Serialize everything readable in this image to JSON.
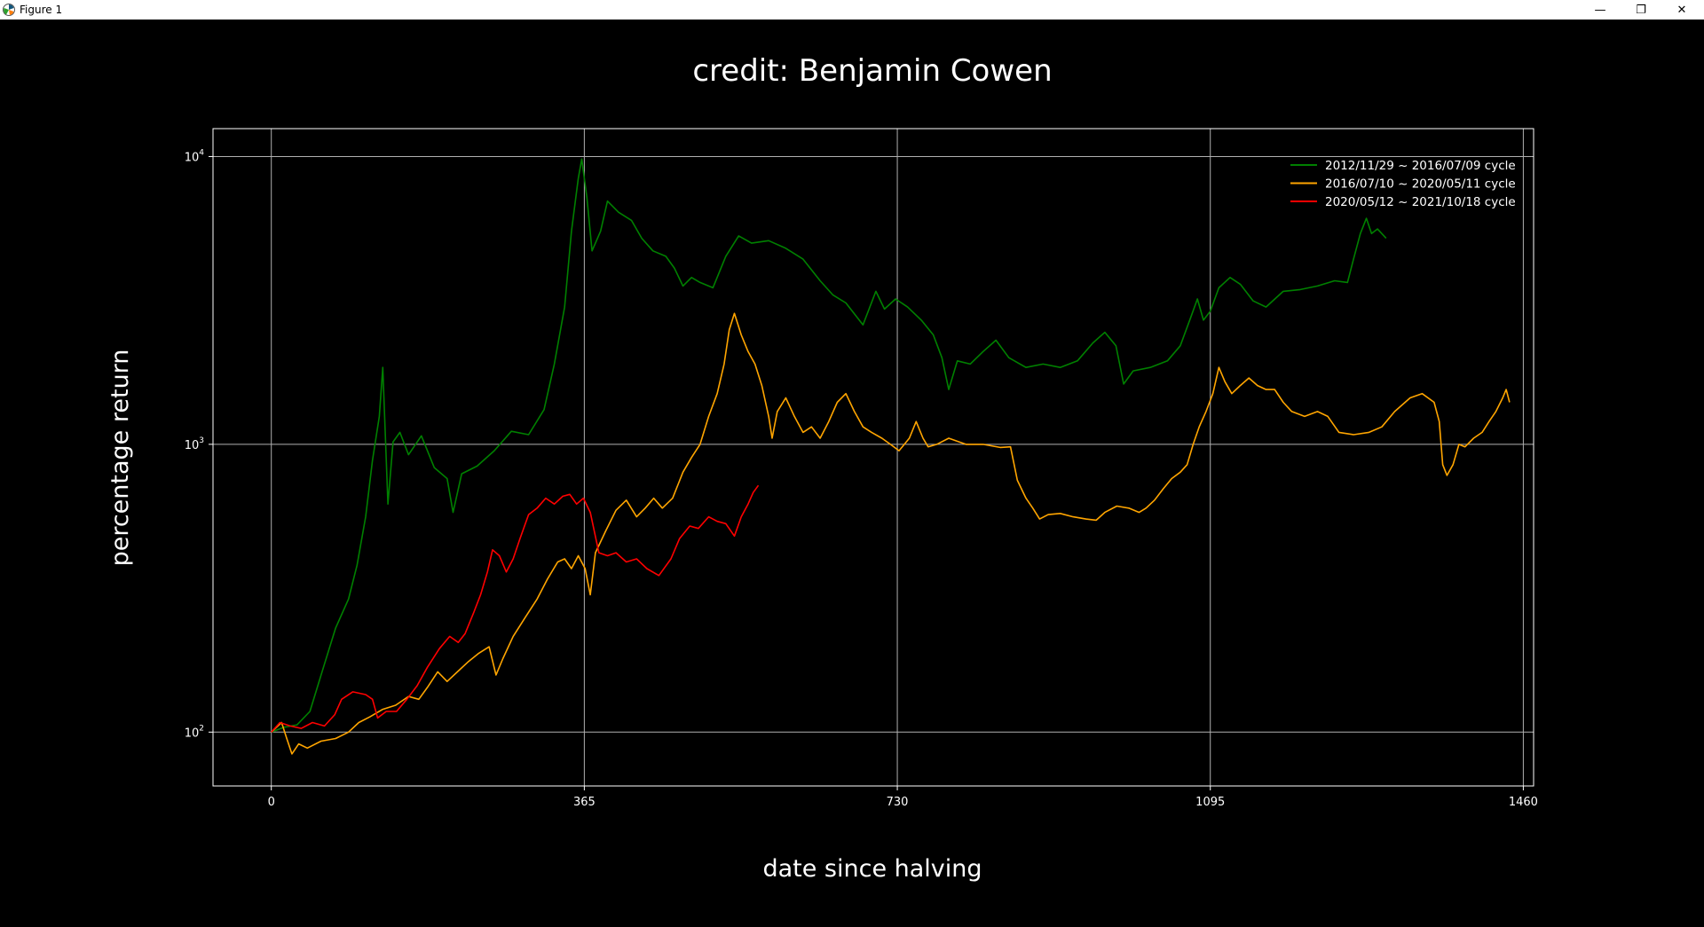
{
  "window": {
    "title": "Figure 1",
    "minimize_glyph": "—",
    "maximize_glyph": "❐",
    "close_glyph": "✕"
  },
  "chart_data": {
    "type": "line",
    "title": "credit: Benjamin Cowen",
    "xlabel": "date since halving",
    "ylabel": "percentage return",
    "xlim": [
      -68,
      1472
    ],
    "ylim": [
      65,
      12500
    ],
    "yscale": "log",
    "xticks": [
      0,
      365,
      730,
      1095,
      1460
    ],
    "yticks": [
      {
        "value": 100,
        "base": "10",
        "exp": "2"
      },
      {
        "value": 1000,
        "base": "10",
        "exp": "3"
      },
      {
        "value": 10000,
        "base": "10",
        "exp": "4"
      }
    ],
    "grid": true,
    "background": "#000000",
    "legend_position": "upper right",
    "series": [
      {
        "name": "2012/11/29 ~ 2016/07/09 cycle",
        "color": "#008000",
        "points": [
          [
            0,
            100
          ],
          [
            15,
            104
          ],
          [
            30,
            106
          ],
          [
            45,
            118
          ],
          [
            60,
            165
          ],
          [
            75,
            230
          ],
          [
            90,
            290
          ],
          [
            100,
            380
          ],
          [
            110,
            560
          ],
          [
            118,
            880
          ],
          [
            126,
            1250
          ],
          [
            130,
            1850
          ],
          [
            136,
            620
          ],
          [
            142,
            1020
          ],
          [
            150,
            1100
          ],
          [
            160,
            920
          ],
          [
            175,
            1070
          ],
          [
            190,
            830
          ],
          [
            205,
            760
          ],
          [
            212,
            580
          ],
          [
            222,
            790
          ],
          [
            240,
            840
          ],
          [
            260,
            950
          ],
          [
            280,
            1110
          ],
          [
            300,
            1080
          ],
          [
            318,
            1320
          ],
          [
            330,
            1900
          ],
          [
            342,
            3000
          ],
          [
            350,
            5500
          ],
          [
            358,
            8400
          ],
          [
            362,
            9800
          ],
          [
            368,
            7200
          ],
          [
            374,
            4700
          ],
          [
            384,
            5500
          ],
          [
            392,
            7000
          ],
          [
            405,
            6400
          ],
          [
            420,
            6000
          ],
          [
            432,
            5200
          ],
          [
            445,
            4700
          ],
          [
            460,
            4500
          ],
          [
            470,
            4100
          ],
          [
            480,
            3550
          ],
          [
            490,
            3800
          ],
          [
            500,
            3650
          ],
          [
            515,
            3500
          ],
          [
            530,
            4500
          ],
          [
            545,
            5300
          ],
          [
            560,
            5000
          ],
          [
            580,
            5100
          ],
          [
            600,
            4800
          ],
          [
            620,
            4400
          ],
          [
            640,
            3700
          ],
          [
            655,
            3300
          ],
          [
            670,
            3100
          ],
          [
            690,
            2600
          ],
          [
            705,
            3400
          ],
          [
            715,
            2950
          ],
          [
            728,
            3200
          ],
          [
            742,
            3000
          ],
          [
            758,
            2700
          ],
          [
            772,
            2400
          ],
          [
            782,
            2000
          ],
          [
            790,
            1550
          ],
          [
            800,
            1950
          ],
          [
            815,
            1900
          ],
          [
            830,
            2100
          ],
          [
            845,
            2300
          ],
          [
            860,
            2000
          ],
          [
            880,
            1850
          ],
          [
            900,
            1900
          ],
          [
            920,
            1850
          ],
          [
            940,
            1950
          ],
          [
            958,
            2250
          ],
          [
            972,
            2450
          ],
          [
            985,
            2200
          ],
          [
            994,
            1620
          ],
          [
            1005,
            1800
          ],
          [
            1025,
            1850
          ],
          [
            1045,
            1950
          ],
          [
            1060,
            2200
          ],
          [
            1072,
            2750
          ],
          [
            1080,
            3200
          ],
          [
            1087,
            2700
          ],
          [
            1095,
            2900
          ],
          [
            1105,
            3500
          ],
          [
            1118,
            3800
          ],
          [
            1130,
            3600
          ],
          [
            1145,
            3150
          ],
          [
            1160,
            3000
          ],
          [
            1180,
            3400
          ],
          [
            1200,
            3450
          ],
          [
            1220,
            3550
          ],
          [
            1240,
            3700
          ],
          [
            1255,
            3650
          ],
          [
            1262,
            4400
          ],
          [
            1270,
            5400
          ],
          [
            1277,
            6100
          ],
          [
            1283,
            5400
          ],
          [
            1290,
            5600
          ],
          [
            1300,
            5200
          ]
        ]
      },
      {
        "name": "2016/07/10 ~ 2020/05/11 cycle",
        "color": "#ffa500",
        "points": [
          [
            0,
            100
          ],
          [
            12,
            108
          ],
          [
            18,
            95
          ],
          [
            24,
            84
          ],
          [
            32,
            91
          ],
          [
            42,
            88
          ],
          [
            58,
            93
          ],
          [
            75,
            95
          ],
          [
            90,
            100
          ],
          [
            102,
            108
          ],
          [
            115,
            113
          ],
          [
            130,
            120
          ],
          [
            145,
            124
          ],
          [
            160,
            133
          ],
          [
            172,
            130
          ],
          [
            182,
            143
          ],
          [
            194,
            162
          ],
          [
            205,
            150
          ],
          [
            218,
            163
          ],
          [
            230,
            176
          ],
          [
            242,
            188
          ],
          [
            254,
            198
          ],
          [
            262,
            158
          ],
          [
            270,
            180
          ],
          [
            282,
            215
          ],
          [
            296,
            250
          ],
          [
            310,
            290
          ],
          [
            322,
            340
          ],
          [
            334,
            390
          ],
          [
            342,
            400
          ],
          [
            350,
            370
          ],
          [
            358,
            410
          ],
          [
            366,
            370
          ],
          [
            372,
            300
          ],
          [
            378,
            420
          ],
          [
            390,
            500
          ],
          [
            402,
            590
          ],
          [
            414,
            640
          ],
          [
            426,
            560
          ],
          [
            436,
            600
          ],
          [
            446,
            650
          ],
          [
            456,
            600
          ],
          [
            468,
            650
          ],
          [
            480,
            800
          ],
          [
            490,
            900
          ],
          [
            500,
            1000
          ],
          [
            510,
            1250
          ],
          [
            520,
            1500
          ],
          [
            528,
            1900
          ],
          [
            534,
            2500
          ],
          [
            540,
            2850
          ],
          [
            548,
            2400
          ],
          [
            556,
            2100
          ],
          [
            564,
            1900
          ],
          [
            572,
            1600
          ],
          [
            580,
            1250
          ],
          [
            584,
            1050
          ],
          [
            590,
            1300
          ],
          [
            600,
            1450
          ],
          [
            610,
            1250
          ],
          [
            620,
            1100
          ],
          [
            630,
            1150
          ],
          [
            640,
            1050
          ],
          [
            650,
            1200
          ],
          [
            660,
            1400
          ],
          [
            670,
            1500
          ],
          [
            680,
            1300
          ],
          [
            690,
            1150
          ],
          [
            700,
            1100
          ],
          [
            712,
            1050
          ],
          [
            722,
            1000
          ],
          [
            732,
            950
          ],
          [
            744,
            1050
          ],
          [
            752,
            1200
          ],
          [
            760,
            1050
          ],
          [
            766,
            980
          ],
          [
            776,
            1000
          ],
          [
            790,
            1050
          ],
          [
            810,
            1000
          ],
          [
            830,
            1000
          ],
          [
            850,
            975
          ],
          [
            862,
            980
          ],
          [
            870,
            750
          ],
          [
            880,
            650
          ],
          [
            888,
            600
          ],
          [
            896,
            550
          ],
          [
            906,
            570
          ],
          [
            920,
            575
          ],
          [
            935,
            560
          ],
          [
            950,
            550
          ],
          [
            962,
            545
          ],
          [
            972,
            580
          ],
          [
            986,
            610
          ],
          [
            1000,
            600
          ],
          [
            1012,
            580
          ],
          [
            1020,
            600
          ],
          [
            1030,
            640
          ],
          [
            1040,
            700
          ],
          [
            1050,
            760
          ],
          [
            1060,
            800
          ],
          [
            1068,
            850
          ],
          [
            1075,
            1000
          ],
          [
            1082,
            1150
          ],
          [
            1090,
            1300
          ],
          [
            1098,
            1500
          ],
          [
            1105,
            1850
          ],
          [
            1112,
            1650
          ],
          [
            1120,
            1500
          ],
          [
            1130,
            1600
          ],
          [
            1140,
            1700
          ],
          [
            1150,
            1600
          ],
          [
            1160,
            1550
          ],
          [
            1170,
            1550
          ],
          [
            1180,
            1400
          ],
          [
            1190,
            1300
          ],
          [
            1205,
            1250
          ],
          [
            1220,
            1300
          ],
          [
            1232,
            1250
          ],
          [
            1245,
            1100
          ],
          [
            1262,
            1080
          ],
          [
            1280,
            1100
          ],
          [
            1295,
            1150
          ],
          [
            1310,
            1300
          ],
          [
            1328,
            1450
          ],
          [
            1342,
            1500
          ],
          [
            1356,
            1400
          ],
          [
            1362,
            1200
          ],
          [
            1366,
            850
          ],
          [
            1371,
            780
          ],
          [
            1378,
            850
          ],
          [
            1385,
            1000
          ],
          [
            1392,
            980
          ],
          [
            1402,
            1050
          ],
          [
            1412,
            1100
          ],
          [
            1420,
            1200
          ],
          [
            1428,
            1300
          ],
          [
            1436,
            1450
          ],
          [
            1440,
            1550
          ],
          [
            1444,
            1400
          ]
        ]
      },
      {
        "name": "2020/05/12 ~ 2021/10/18 cycle",
        "color": "#ff0000",
        "points": [
          [
            0,
            100
          ],
          [
            10,
            108
          ],
          [
            22,
            105
          ],
          [
            35,
            103
          ],
          [
            48,
            108
          ],
          [
            62,
            105
          ],
          [
            74,
            115
          ],
          [
            82,
            130
          ],
          [
            95,
            138
          ],
          [
            110,
            135
          ],
          [
            118,
            130
          ],
          [
            124,
            112
          ],
          [
            134,
            118
          ],
          [
            146,
            118
          ],
          [
            158,
            130
          ],
          [
            170,
            145
          ],
          [
            182,
            168
          ],
          [
            196,
            195
          ],
          [
            208,
            215
          ],
          [
            218,
            205
          ],
          [
            226,
            220
          ],
          [
            236,
            260
          ],
          [
            244,
            300
          ],
          [
            252,
            360
          ],
          [
            258,
            430
          ],
          [
            266,
            410
          ],
          [
            274,
            360
          ],
          [
            282,
            400
          ],
          [
            290,
            470
          ],
          [
            300,
            570
          ],
          [
            310,
            600
          ],
          [
            320,
            650
          ],
          [
            330,
            620
          ],
          [
            340,
            660
          ],
          [
            348,
            670
          ],
          [
            356,
            620
          ],
          [
            364,
            650
          ],
          [
            372,
            580
          ],
          [
            382,
            420
          ],
          [
            392,
            410
          ],
          [
            402,
            420
          ],
          [
            414,
            390
          ],
          [
            426,
            400
          ],
          [
            438,
            370
          ],
          [
            452,
            350
          ],
          [
            466,
            400
          ],
          [
            476,
            470
          ],
          [
            488,
            520
          ],
          [
            498,
            510
          ],
          [
            510,
            560
          ],
          [
            520,
            540
          ],
          [
            530,
            530
          ],
          [
            540,
            480
          ],
          [
            548,
            560
          ],
          [
            556,
            620
          ],
          [
            562,
            680
          ],
          [
            568,
            720
          ]
        ]
      }
    ]
  }
}
